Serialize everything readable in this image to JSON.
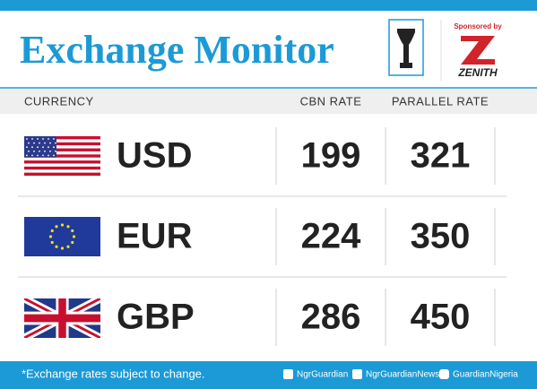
{
  "header": {
    "title": "Exchange Monitor",
    "sponsor_label": "Sponsored by",
    "sponsor_name": "ZENITH"
  },
  "table": {
    "columns": [
      "CURRENCY",
      "CBN RATE",
      "PARALLEL RATE"
    ],
    "rows": [
      [
        "USD",
        199,
        321
      ],
      [
        "EUR",
        224,
        350
      ],
      [
        "GBP",
        286,
        450
      ]
    ]
  },
  "footer": {
    "note": "*Exchange rates subject to change.",
    "facebook": "NgrGuardian",
    "twitter": "NgrGuardianNews",
    "instagram": "GuardianNigeria"
  }
}
